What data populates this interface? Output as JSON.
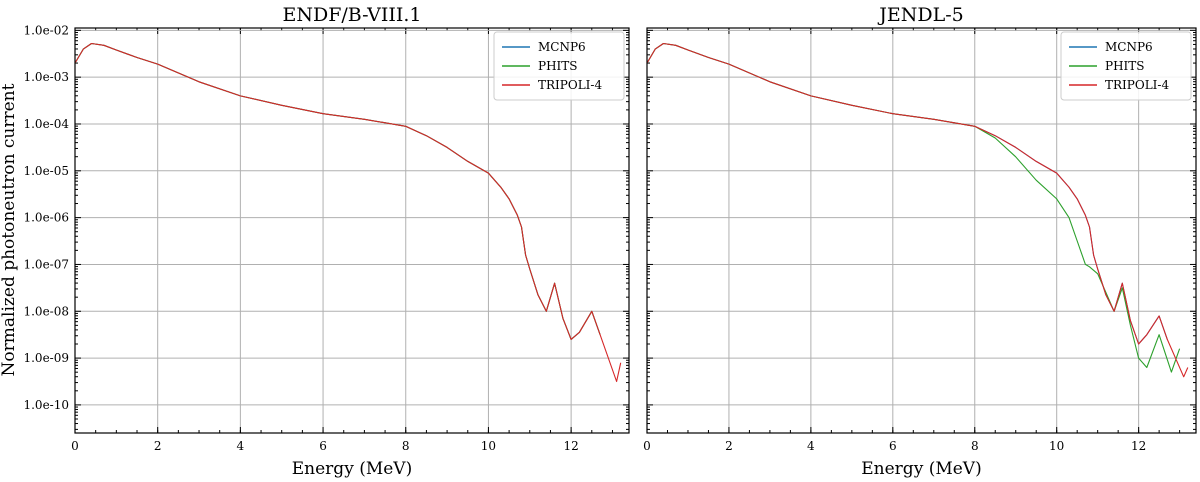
{
  "figure": {
    "ylabel": "Normalized photoneutron current"
  },
  "chart_data": [
    {
      "type": "line",
      "title": "ENDF/B-VIII.1",
      "xlabel": "Energy (MeV)",
      "ylabel": "Normalized photoneutron current",
      "xlim": [
        0,
        13.4
      ],
      "ylim_log10": [
        -10.6,
        -1.95
      ],
      "yscale": "log",
      "grid": true,
      "legend_position": "top-right",
      "x_ticks": [
        0,
        2,
        4,
        6,
        8,
        10,
        12
      ],
      "y_ticks": [
        "1.0e-02",
        "1.0e-03",
        "1.0e-04",
        "1.0e-05",
        "1.0e-06",
        "1.0e-07",
        "1.0e-08",
        "1.0e-09",
        "1.0e-10"
      ],
      "series": [
        {
          "name": "MCNP6",
          "color": "#1f77b4",
          "x": [
            0,
            0.2,
            0.4,
            0.7,
            1,
            1.5,
            2,
            3,
            4,
            5,
            6,
            7,
            8,
            8.5,
            9,
            9.5,
            10,
            10.3,
            10.5,
            10.7,
            10.8,
            10.9,
            11,
            11.2,
            11.4,
            11.6,
            11.8,
            12,
            12.2,
            12.5,
            12.7
          ],
          "y": [
            -2.7,
            -2.4,
            -2.28,
            -2.32,
            -2.42,
            -2.58,
            -2.72,
            -3.1,
            -3.4,
            -3.6,
            -3.78,
            -3.9,
            -4.05,
            -4.25,
            -4.5,
            -4.8,
            -5.05,
            -5.35,
            -5.6,
            -5.95,
            -6.2,
            -6.8,
            -7.1,
            -7.65,
            -8.0,
            -7.4,
            -8.15,
            -8.6,
            -8.45,
            -8.0,
            -8.5
          ]
        },
        {
          "name": "PHITS",
          "color": "#2ca02c",
          "x": [
            0,
            0.2,
            0.4,
            0.7,
            1,
            1.5,
            2,
            3,
            4,
            5,
            6,
            7,
            8,
            8.5,
            9,
            9.5,
            10,
            10.3,
            10.5,
            10.7,
            10.8,
            10.9,
            11,
            11.2,
            11.4,
            11.6,
            11.8,
            12,
            12.2,
            12.5,
            12.7
          ],
          "y": [
            -2.7,
            -2.4,
            -2.28,
            -2.32,
            -2.42,
            -2.58,
            -2.72,
            -3.1,
            -3.4,
            -3.6,
            -3.78,
            -3.9,
            -4.05,
            -4.25,
            -4.5,
            -4.8,
            -5.05,
            -5.35,
            -5.6,
            -5.95,
            -6.2,
            -6.8,
            -7.1,
            -7.65,
            -8.0,
            -7.4,
            -8.15,
            -8.6,
            -8.45,
            -8.0,
            -8.5
          ]
        },
        {
          "name": "TRIPOLI-4",
          "color": "#d62728",
          "x": [
            0,
            0.2,
            0.4,
            0.7,
            1,
            1.5,
            2,
            3,
            4,
            5,
            6,
            7,
            8,
            8.5,
            9,
            9.5,
            10,
            10.3,
            10.5,
            10.7,
            10.8,
            10.9,
            11,
            11.2,
            11.4,
            11.6,
            11.8,
            12,
            12.2,
            12.5,
            12.7,
            13.1,
            13.2
          ],
          "y": [
            -2.7,
            -2.4,
            -2.28,
            -2.32,
            -2.42,
            -2.58,
            -2.72,
            -3.1,
            -3.4,
            -3.6,
            -3.78,
            -3.9,
            -4.05,
            -4.25,
            -4.5,
            -4.8,
            -5.05,
            -5.35,
            -5.6,
            -5.95,
            -6.2,
            -6.8,
            -7.1,
            -7.65,
            -8.0,
            -7.4,
            -8.15,
            -8.6,
            -8.45,
            -8.0,
            -8.5,
            -9.5,
            -9.1
          ]
        }
      ]
    },
    {
      "type": "line",
      "title": "JENDL-5",
      "xlabel": "Energy (MeV)",
      "ylabel": "",
      "xlim": [
        0,
        13.4
      ],
      "ylim_log10": [
        -10.6,
        -1.95
      ],
      "yscale": "log",
      "grid": true,
      "legend_position": "top-right",
      "x_ticks": [
        0,
        2,
        4,
        6,
        8,
        10,
        12
      ],
      "y_ticks": [],
      "series": [
        {
          "name": "MCNP6",
          "color": "#1f77b4",
          "x": [
            0,
            0.2,
            0.4,
            0.7,
            1,
            1.5,
            2,
            3,
            4,
            5,
            6,
            7,
            8,
            8.5,
            9,
            9.5,
            10,
            10.3,
            10.5,
            10.7,
            10.8,
            10.9,
            11,
            11.2,
            11.4,
            11.6,
            11.8,
            12,
            12.2,
            12.5,
            12.7
          ],
          "y": [
            -2.7,
            -2.4,
            -2.28,
            -2.32,
            -2.42,
            -2.58,
            -2.72,
            -3.1,
            -3.4,
            -3.6,
            -3.78,
            -3.9,
            -4.05,
            -4.25,
            -4.5,
            -4.8,
            -5.05,
            -5.35,
            -5.6,
            -5.95,
            -6.2,
            -6.8,
            -7.1,
            -7.65,
            -8.0,
            -7.4,
            -8.2,
            -8.7,
            -8.5,
            -8.1,
            -8.6
          ]
        },
        {
          "name": "PHITS",
          "color": "#2ca02c",
          "x": [
            0,
            0.2,
            0.4,
            0.7,
            1,
            1.5,
            2,
            3,
            4,
            5,
            6,
            7,
            8,
            8.5,
            9,
            9.5,
            10,
            10.3,
            10.5,
            10.7,
            10.8,
            11,
            11.2,
            11.4,
            11.6,
            11.8,
            12,
            12.2,
            12.5,
            12.8,
            13
          ],
          "y": [
            -2.7,
            -2.4,
            -2.28,
            -2.32,
            -2.42,
            -2.58,
            -2.72,
            -3.1,
            -3.4,
            -3.6,
            -3.78,
            -3.9,
            -4.05,
            -4.3,
            -4.7,
            -5.2,
            -5.6,
            -6.0,
            -6.5,
            -7.0,
            -7.05,
            -7.2,
            -7.6,
            -8.0,
            -7.5,
            -8.3,
            -9.0,
            -9.2,
            -8.5,
            -9.3,
            -8.8
          ]
        },
        {
          "name": "TRIPOLI-4",
          "color": "#d62728",
          "x": [
            0,
            0.2,
            0.4,
            0.7,
            1,
            1.5,
            2,
            3,
            4,
            5,
            6,
            7,
            8,
            8.5,
            9,
            9.5,
            10,
            10.3,
            10.5,
            10.7,
            10.8,
            10.9,
            11,
            11.2,
            11.4,
            11.6,
            11.8,
            12,
            12.2,
            12.5,
            12.7,
            13.1,
            13.2
          ],
          "y": [
            -2.7,
            -2.4,
            -2.28,
            -2.32,
            -2.42,
            -2.58,
            -2.72,
            -3.1,
            -3.4,
            -3.6,
            -3.78,
            -3.9,
            -4.05,
            -4.25,
            -4.5,
            -4.8,
            -5.05,
            -5.35,
            -5.6,
            -5.95,
            -6.2,
            -6.8,
            -7.1,
            -7.65,
            -8.0,
            -7.4,
            -8.2,
            -8.7,
            -8.5,
            -8.1,
            -8.6,
            -9.4,
            -9.2
          ]
        }
      ]
    }
  ]
}
